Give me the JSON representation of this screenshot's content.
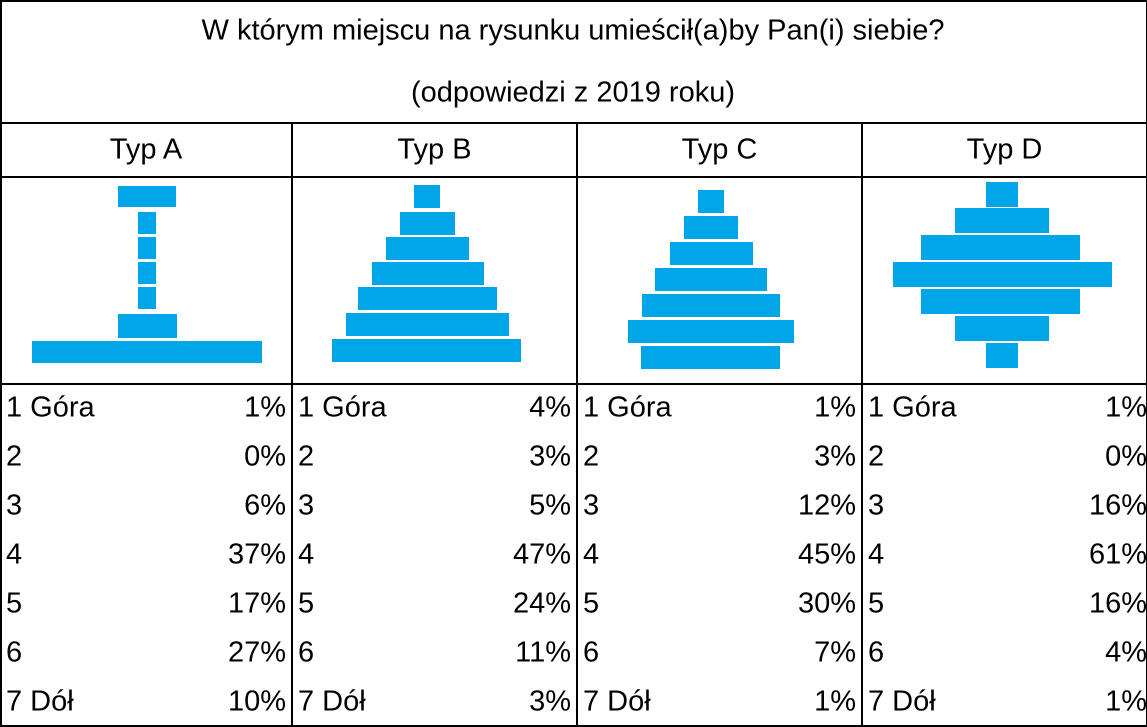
{
  "title": [
    "W którym miejscu na rysunku umieścił(a)by Pan(i) siebie?",
    "(odpowiedzi z 2019 roku)"
  ],
  "table": {
    "columns": [
      {
        "header": "Typ A",
        "rows": [
          [
            "1 Góra",
            "1%"
          ],
          [
            "2",
            "0%"
          ],
          [
            "3",
            "6%"
          ],
          [
            "4",
            "37%"
          ],
          [
            "5",
            "17%"
          ],
          [
            "6",
            "27%"
          ],
          [
            "7 Dół",
            "10%"
          ]
        ]
      },
      {
        "header": "Typ B",
        "rows": [
          [
            "1 Góra",
            "4%"
          ],
          [
            "2",
            "3%"
          ],
          [
            "3",
            "5%"
          ],
          [
            "4",
            "47%"
          ],
          [
            "5",
            "24%"
          ],
          [
            "6",
            "11%"
          ],
          [
            "7 Dół",
            "3%"
          ]
        ]
      },
      {
        "header": "Typ C",
        "rows": [
          [
            "1 Góra",
            "1%"
          ],
          [
            "2",
            "3%"
          ],
          [
            "3",
            "12%"
          ],
          [
            "4",
            "45%"
          ],
          [
            "5",
            "30%"
          ],
          [
            "6",
            "7%"
          ],
          [
            "7 Dół",
            "1%"
          ]
        ]
      },
      {
        "header": "Typ D",
        "rows": [
          [
            "1 Góra",
            "1%"
          ],
          [
            "2",
            "0%"
          ],
          [
            "3",
            "16%"
          ],
          [
            "4",
            "61%"
          ],
          [
            "5",
            "16%"
          ],
          [
            "6",
            "4%"
          ],
          [
            "7 Dół",
            "1%"
          ]
        ]
      }
    ]
  }
}
